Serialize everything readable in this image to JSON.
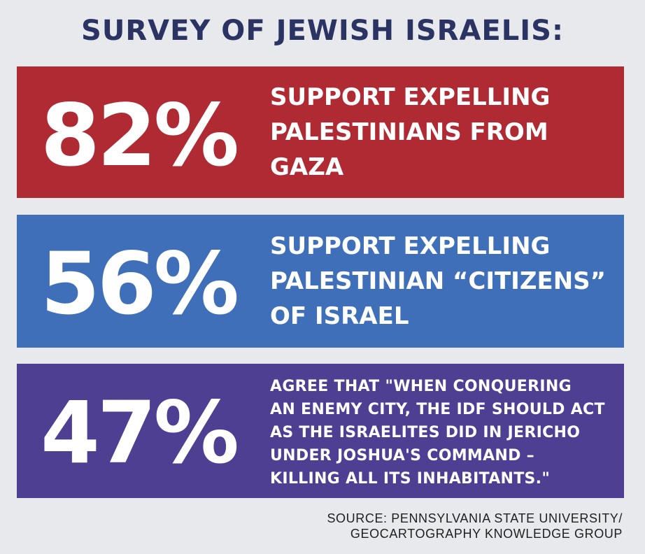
{
  "header": {
    "title": "SURVEY OF JEWISH ISRAELIS:"
  },
  "stats": [
    {
      "percent": "82%",
      "lines": [
        "SUPPORT EXPELLING",
        "PALESTINIANS FROM",
        "GAZA"
      ],
      "color": "#b02a34"
    },
    {
      "percent": "56%",
      "lines": [
        "SUPPORT EXPELLING",
        "PALESTINIAN “CITIZENS”",
        "OF ISRAEL"
      ],
      "color": "#3e6fb8"
    },
    {
      "percent": "47%",
      "lines": [
        "AGREE THAT \"WHEN CONQUERING",
        "AN ENEMY CITY, THE IDF SHOULD ACT",
        "AS THE ISRAELITES DID IN JERICHO",
        "UNDER JOSHUA'S COMMAND –",
        "KILLING ALL ITS INHABITANTS.\""
      ],
      "color": "#4e3f92"
    }
  ],
  "footer": {
    "source_line1": "SOURCE: PENNSYLVANIA STATE UNIVERSITY/",
    "source_line2": "GEOCARTOGRAPHY KNOWLEDGE GROUP"
  },
  "colors": {
    "background": "#e8e9ec",
    "title": "#2b3362"
  }
}
